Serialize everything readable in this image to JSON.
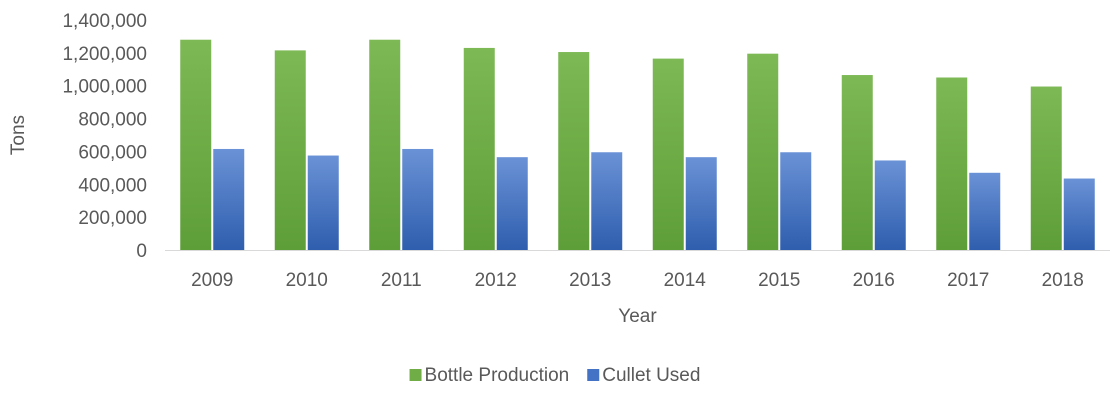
{
  "chart_data": {
    "type": "bar",
    "title": "",
    "xlabel": "Year",
    "ylabel": "Tons",
    "ylim": [
      0,
      1400000
    ],
    "ytick_step": 200000,
    "yticks": [
      "0",
      "200,000",
      "400,000",
      "600,000",
      "800,000",
      "1,000,000",
      "1,200,000",
      "1,400,000"
    ],
    "categories": [
      "2009",
      "2010",
      "2011",
      "2012",
      "2013",
      "2014",
      "2015",
      "2016",
      "2017",
      "2018"
    ],
    "grid": false,
    "legend_position": "bottom",
    "series": [
      {
        "name": "Bottle Production",
        "color": "#70AD47",
        "values": [
          1280000,
          1215000,
          1280000,
          1230000,
          1205000,
          1165000,
          1195000,
          1065000,
          1050000,
          995000
        ]
      },
      {
        "name": "Cullet Used",
        "color": "#4472C4",
        "values": [
          615000,
          575000,
          615000,
          565000,
          595000,
          565000,
          595000,
          545000,
          470000,
          435000
        ]
      }
    ]
  }
}
